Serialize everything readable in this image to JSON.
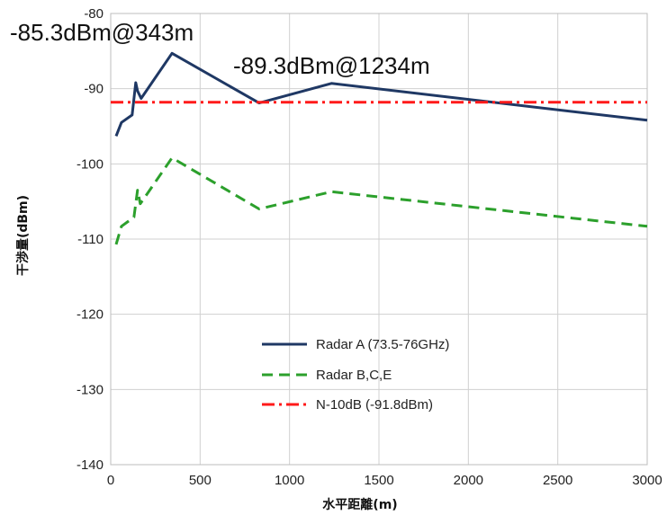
{
  "chart_data": {
    "type": "line",
    "xlabel": "水平距離(m)",
    "ylabel": "干渉量(dBm)",
    "xlim": [
      0,
      3000
    ],
    "ylim": [
      -140,
      -80
    ],
    "xticks": [
      0,
      500,
      1000,
      1500,
      2000,
      2500,
      3000
    ],
    "yticks": [
      -140,
      -130,
      -120,
      -110,
      -100,
      -90,
      -80
    ],
    "grid": true,
    "legend_position": "lower-center",
    "annotations": [
      {
        "text": "-85.3dBm@343m"
      },
      {
        "text": "-89.3dBm@1234m"
      }
    ],
    "series": [
      {
        "name": "Radar A (73.5-76GHz)",
        "color": "#1f3864",
        "style": "solid",
        "x": [
          30,
          60,
          120,
          140,
          150,
          170,
          343,
          830,
          1234,
          3000
        ],
        "y": [
          -96.3,
          -94.5,
          -93.5,
          -89.2,
          -90.3,
          -91.3,
          -85.3,
          -91.9,
          -89.3,
          -94.2
        ]
      },
      {
        "name": "Radar B,C,E",
        "color": "#2ca02c",
        "style": "dashed",
        "x": [
          30,
          60,
          130,
          150,
          165,
          180,
          343,
          830,
          1234,
          3000
        ],
        "y": [
          -110.7,
          -108.3,
          -107.1,
          -103.5,
          -105.3,
          -104.8,
          -99.2,
          -106.0,
          -103.7,
          -108.3
        ]
      },
      {
        "name": "N-10dB (-91.8dBm)",
        "color": "#ff1a1a",
        "style": "dashdot",
        "x": [
          0,
          3000
        ],
        "y": [
          -91.8,
          -91.8
        ]
      }
    ]
  }
}
